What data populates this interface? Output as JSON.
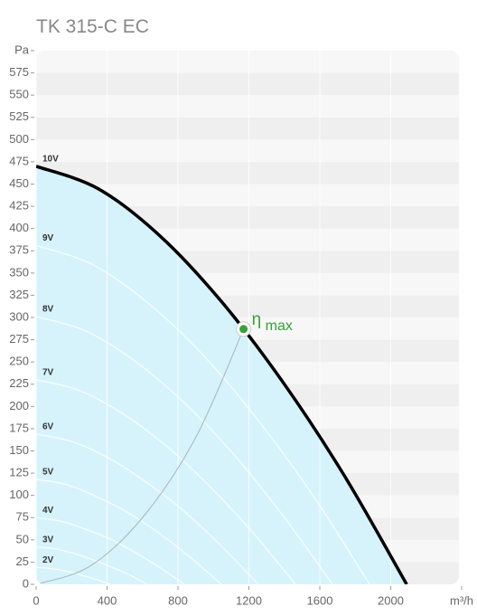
{
  "chart_data": {
    "type": "line",
    "title": "TK 315-C EC",
    "xlim": [
      0,
      2400
    ],
    "ylim": [
      0,
      600
    ],
    "xticks": [
      0,
      400,
      800,
      1200,
      1600,
      2000,
      {
        "value": 2400,
        "label": "m³/h"
      }
    ],
    "yticks": [
      0,
      25,
      50,
      75,
      100,
      125,
      150,
      175,
      200,
      225,
      250,
      275,
      300,
      325,
      350,
      375,
      400,
      425,
      450,
      475,
      500,
      525,
      550,
      575,
      {
        "value": 600,
        "label": "Pa"
      }
    ],
    "background_colors": [
      "#efefef",
      "#f7f7f7"
    ],
    "area_color": "#d6f3fc",
    "series": [
      {
        "name": "10V",
        "color": "#000000",
        "x": [
          0,
          348,
          697,
          1045,
          1393,
          1742,
          2090
        ],
        "values": [
          470,
          445,
          392,
          318,
          227,
          121,
          0
        ]
      },
      {
        "name": "9V",
        "color": "#ffffff",
        "x": [
          0,
          314,
          627,
          941,
          1254,
          1568,
          1881
        ],
        "values": [
          381,
          360,
          317,
          258,
          184,
          98,
          0
        ]
      },
      {
        "name": "8V",
        "color": "#ffffff",
        "x": [
          0,
          279,
          557,
          836,
          1115,
          1393,
          1672
        ],
        "values": [
          301,
          285,
          251,
          204,
          146,
          77,
          0
        ]
      },
      {
        "name": "7V",
        "color": "#ffffff",
        "x": [
          0,
          244,
          488,
          732,
          975,
          1219,
          1463
        ],
        "values": [
          230,
          218,
          192,
          156,
          111,
          59,
          0
        ]
      },
      {
        "name": "6V",
        "color": "#ffffff",
        "x": [
          0,
          209,
          418,
          627,
          836,
          1045,
          1254
        ],
        "values": [
          169,
          160,
          141,
          114,
          82,
          43,
          0
        ]
      },
      {
        "name": "5V",
        "color": "#ffffff",
        "x": [
          0,
          174,
          348,
          523,
          697,
          871,
          1045
        ],
        "values": [
          118,
          112,
          98,
          80,
          57,
          30,
          0
        ]
      },
      {
        "name": "4V",
        "color": "#ffffff",
        "x": [
          0,
          139,
          279,
          418,
          557,
          697,
          836
        ],
        "values": [
          75,
          71,
          62,
          51,
          36,
          19,
          0
        ]
      },
      {
        "name": "3V",
        "color": "#ffffff",
        "x": [
          0,
          105,
          209,
          314,
          418,
          523,
          627
        ],
        "values": [
          42,
          40,
          35,
          28,
          20,
          11,
          0
        ]
      },
      {
        "name": "2V",
        "color": "#ffffff",
        "x": [
          0,
          70,
          139,
          209,
          279,
          348,
          418
        ],
        "values": [
          19,
          18,
          16,
          13,
          9,
          5,
          0
        ]
      }
    ],
    "efficiency_line": {
      "color": "#a9b4ba",
      "x": [
        0,
        300,
        600,
        900,
        1170
      ],
      "values": [
        0,
        20,
        75,
        165,
        287
      ]
    },
    "max_point": {
      "x": 1170,
      "value": 287,
      "color": "#3aa03a",
      "label": "η",
      "label_sub": "max"
    }
  }
}
